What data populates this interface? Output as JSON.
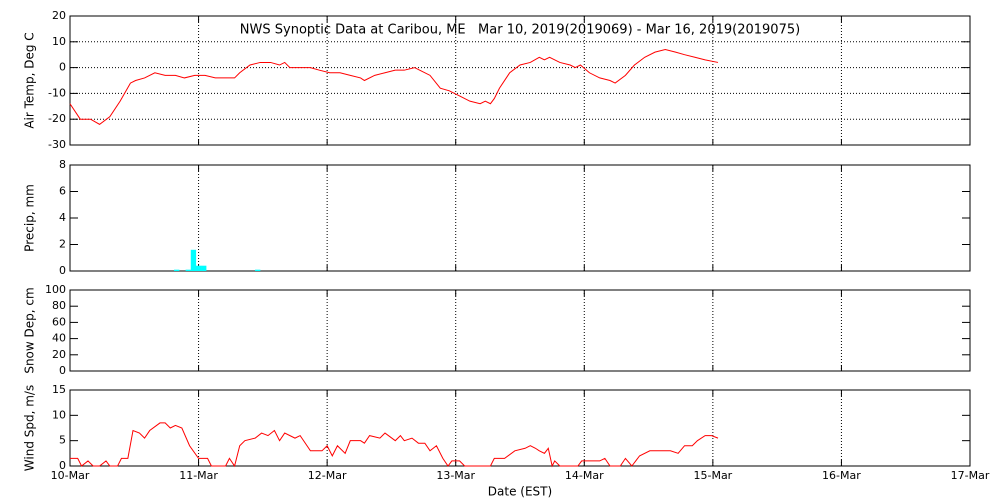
{
  "chart_data": [
    {
      "type": "line",
      "title": "NWS Synoptic Data at Caribou, ME   Mar 10, 2019(2019069) - Mar 16, 2019(2019075)",
      "ylabel": "Air Temp, Deg C",
      "xlim": [
        0,
        7
      ],
      "xticks": [
        0,
        1,
        2,
        3,
        4,
        5,
        6,
        7
      ],
      "ylim": [
        -30,
        20
      ],
      "yticks": [
        -30,
        -20,
        -10,
        0,
        10,
        20
      ],
      "grid": "both",
      "series": [
        {
          "color": "#ff0000",
          "x": [
            0,
            0.08,
            0.16,
            0.23,
            0.31,
            0.39,
            0.47,
            0.51,
            0.58,
            0.66,
            0.74,
            0.82,
            0.89,
            0.97,
            1.05,
            1.13,
            1.21,
            1.28,
            1.32,
            1.4,
            1.48,
            1.56,
            1.63,
            1.67,
            1.71,
            1.79,
            1.87,
            1.94,
            2.02,
            2.1,
            2.18,
            2.26,
            2.29,
            2.37,
            2.45,
            2.53,
            2.6,
            2.68,
            2.72,
            2.8,
            2.88,
            2.95,
            3.03,
            3.11,
            3.19,
            3.23,
            3.27,
            3.3,
            3.34,
            3.42,
            3.5,
            3.58,
            3.65,
            3.69,
            3.73,
            3.81,
            3.89,
            3.93,
            3.97,
            4.04,
            4.12,
            4.2,
            4.24,
            4.32,
            4.39,
            4.47,
            4.55,
            4.63,
            4.71,
            4.78,
            4.86,
            4.94,
            5.04
          ],
          "values": [
            -14,
            -20,
            -20,
            -22,
            -19,
            -13,
            -6,
            -5,
            -4,
            -2,
            -3,
            -3,
            -4,
            -3,
            -3,
            -4,
            -4,
            -4,
            -2,
            1,
            2,
            2,
            1,
            2,
            0,
            0,
            0,
            -1,
            -2,
            -2,
            -3,
            -4,
            -5,
            -3,
            -2,
            -1,
            -1,
            0,
            -1,
            -3,
            -8,
            -9,
            -11,
            -13,
            -14,
            -13,
            -14,
            -12,
            -8,
            -2,
            1,
            2,
            4,
            3,
            4,
            2,
            1,
            0,
            1,
            -2,
            -4,
            -5,
            -6,
            -3,
            1,
            4,
            6,
            7,
            6,
            5,
            4,
            3,
            2
          ]
        }
      ]
    },
    {
      "type": "bar",
      "ylabel": "Precip, mm",
      "xlim": [
        0,
        7
      ],
      "xticks": [
        0,
        1,
        2,
        3,
        4,
        5,
        6,
        7
      ],
      "ylim": [
        0,
        8
      ],
      "yticks": [
        0,
        2,
        4,
        6,
        8
      ],
      "grid": "x",
      "series": [
        {
          "color": "#00ffff",
          "x": [
            0.83,
            0.92,
            0.96,
            1.0,
            1.04,
            1.46
          ],
          "values": [
            0.1,
            0.1,
            1.6,
            0.4,
            0.4,
            0.1
          ]
        }
      ]
    },
    {
      "type": "line",
      "ylabel": "Snow Dep, cm",
      "xlim": [
        0,
        7
      ],
      "xticks": [
        0,
        1,
        2,
        3,
        4,
        5,
        6,
        7
      ],
      "ylim": [
        0,
        100
      ],
      "yticks": [
        0,
        20,
        40,
        60,
        80,
        100
      ],
      "grid": "x"
    },
    {
      "type": "line",
      "ylabel": "Wind Spd, m/s",
      "xlabel": "Date (EST)",
      "xlim": [
        0,
        7
      ],
      "xticks": [
        {
          "value": 0,
          "label": "10-Mar"
        },
        {
          "value": 1,
          "label": "11-Mar"
        },
        {
          "value": 2,
          "label": "12-Mar"
        },
        {
          "value": 3,
          "label": "13-Mar"
        },
        {
          "value": 4,
          "label": "14-Mar"
        },
        {
          "value": 5,
          "label": "15-Mar"
        },
        {
          "value": 6,
          "label": "16-Mar"
        },
        {
          "value": 7,
          "label": "17-Mar"
        }
      ],
      "ylim": [
        0,
        15
      ],
      "yticks": [
        0,
        5,
        10,
        15
      ],
      "grid": "x",
      "series": [
        {
          "color": "#ff0000",
          "x": [
            0,
            0.06,
            0.09,
            0.14,
            0.18,
            0.23,
            0.28,
            0.31,
            0.37,
            0.4,
            0.45,
            0.49,
            0.54,
            0.58,
            0.62,
            0.7,
            0.74,
            0.78,
            0.82,
            0.87,
            0.93,
            1.0,
            1.07,
            1.1,
            1.21,
            1.24,
            1.28,
            1.32,
            1.36,
            1.44,
            1.49,
            1.54,
            1.59,
            1.63,
            1.67,
            1.75,
            1.79,
            1.87,
            1.96,
            2.0,
            2.04,
            2.08,
            2.14,
            2.18,
            2.26,
            2.29,
            2.33,
            2.41,
            2.45,
            2.53,
            2.57,
            2.6,
            2.66,
            2.71,
            2.76,
            2.8,
            2.85,
            2.9,
            2.94,
            2.97,
            3.03,
            3.07,
            3.27,
            3.3,
            3.38,
            3.46,
            3.54,
            3.58,
            3.62,
            3.65,
            3.69,
            3.72,
            3.75,
            3.77,
            3.81,
            3.95,
            3.98,
            4.12,
            4.16,
            4.2,
            4.28,
            4.32,
            4.37,
            4.43,
            4.51,
            4.67,
            4.73,
            4.78,
            4.84,
            4.88,
            4.94,
            4.99,
            5.04
          ],
          "values": [
            1.5,
            1.5,
            0,
            1,
            0,
            0,
            1,
            0,
            0,
            1.5,
            1.5,
            7,
            6.5,
            5.5,
            7,
            8.5,
            8.5,
            7.5,
            8,
            7.5,
            4,
            1.5,
            1.5,
            0,
            0,
            1.5,
            0,
            4,
            5,
            5.5,
            6.5,
            6,
            7,
            5,
            6.5,
            5.5,
            6,
            3,
            3,
            4,
            2,
            4,
            2.5,
            5,
            5,
            4.5,
            6,
            5.5,
            6.5,
            5,
            6,
            5,
            5.5,
            4.5,
            4.5,
            3,
            4,
            1.5,
            0,
            1,
            1,
            0,
            0,
            1.5,
            1.5,
            3,
            3.5,
            4,
            3.5,
            3,
            2.5,
            3.5,
            0,
            1,
            0,
            0,
            1,
            1,
            1.5,
            0,
            0,
            1.5,
            0,
            2,
            3,
            3,
            2.5,
            4,
            4,
            5,
            6,
            6,
            5.5
          ]
        }
      ]
    }
  ]
}
